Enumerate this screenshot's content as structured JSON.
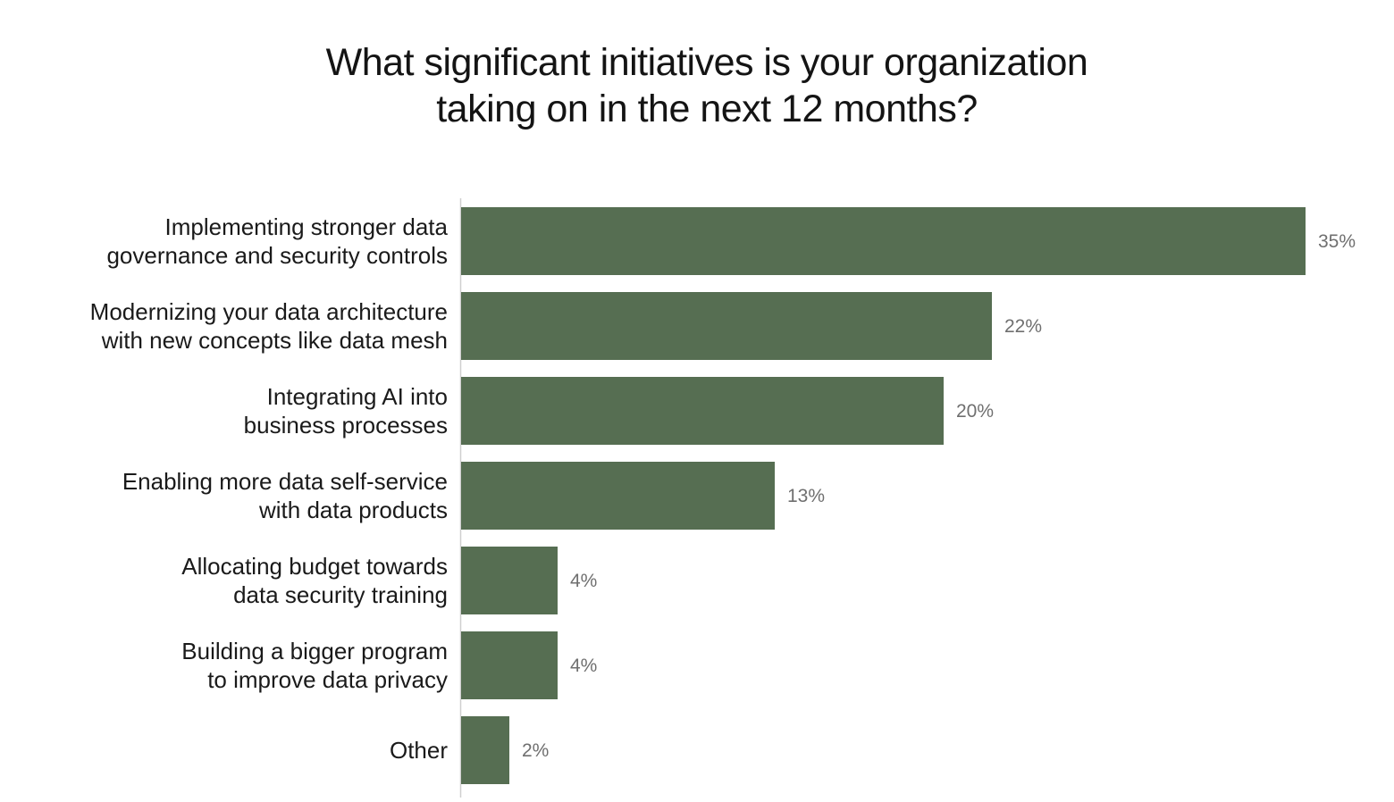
{
  "chart_data": {
    "type": "bar",
    "orientation": "horizontal",
    "title_lines": [
      "What significant initiatives is your organization",
      "taking on in the next 12 months?"
    ],
    "categories": [
      [
        "Implementing stronger data",
        "governance and security controls"
      ],
      [
        "Modernizing your data architecture",
        "with new concepts like data mesh"
      ],
      [
        "Integrating AI into",
        "business processes"
      ],
      [
        "Enabling more data self-service",
        "with data products"
      ],
      [
        "Allocating budget towards",
        "data security training"
      ],
      [
        "Building a bigger program",
        "to improve data privacy"
      ],
      [
        "Other"
      ]
    ],
    "values": [
      35,
      22,
      20,
      13,
      4,
      4,
      2
    ],
    "value_labels": [
      "35%",
      "22%",
      "20%",
      "13%",
      "4%",
      "4%",
      "2%"
    ],
    "unit": "%",
    "xlim": [
      0,
      35
    ],
    "bar_color": "#566e52",
    "grid": false,
    "legend": "none"
  }
}
